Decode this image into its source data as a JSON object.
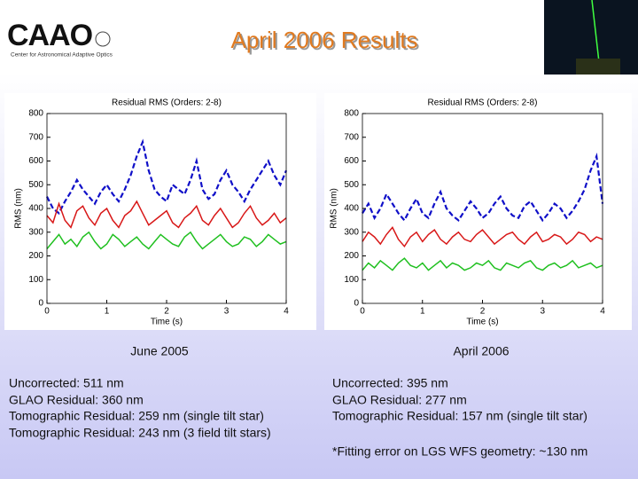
{
  "header": {
    "logo": "CAAO",
    "logo_subtitle": "Center for Astronomical Adaptive Optics",
    "title": "April 2006 Results"
  },
  "chart_data": [
    {
      "type": "line",
      "title": "Residual RMS (Orders: 2-8)",
      "x_label": "Time (s)",
      "y_label": "RMS (nm)",
      "x": [
        0,
        0.1,
        0.2,
        0.3,
        0.4,
        0.5,
        0.6,
        0.7,
        0.8,
        0.9,
        1,
        1.1,
        1.2,
        1.3,
        1.4,
        1.5,
        1.6,
        1.7,
        1.8,
        1.9,
        2,
        2.1,
        2.2,
        2.3,
        2.4,
        2.5,
        2.6,
        2.7,
        2.8,
        2.9,
        3,
        3.1,
        3.2,
        3.3,
        3.4,
        3.5,
        3.6,
        3.7,
        3.8,
        3.9,
        4
      ],
      "xlim": [
        0,
        4
      ],
      "xticks": [
        0,
        1,
        2,
        3,
        4
      ],
      "ylim": [
        0,
        800
      ],
      "yticks": [
        0,
        100,
        200,
        300,
        400,
        500,
        600,
        700,
        800
      ],
      "series": [
        {
          "color": "#1010c8",
          "line_style": "dashed",
          "values": [
            450,
            400,
            380,
            430,
            470,
            520,
            480,
            450,
            420,
            470,
            500,
            460,
            430,
            480,
            540,
            620,
            680,
            560,
            480,
            450,
            430,
            500,
            480,
            460,
            520,
            600,
            480,
            440,
            460,
            520,
            560,
            500,
            470,
            430,
            480,
            520,
            560,
            600,
            540,
            500,
            560
          ]
        },
        {
          "color": "#d81818",
          "line_style": "solid",
          "values": [
            370,
            340,
            420,
            350,
            320,
            390,
            410,
            360,
            330,
            380,
            400,
            350,
            320,
            370,
            390,
            430,
            380,
            330,
            350,
            370,
            390,
            340,
            320,
            360,
            380,
            410,
            350,
            330,
            370,
            400,
            360,
            320,
            340,
            380,
            410,
            360,
            330,
            350,
            380,
            340,
            360
          ]
        },
        {
          "color": "#20c020",
          "line_style": "solid",
          "values": [
            230,
            260,
            290,
            250,
            270,
            240,
            280,
            300,
            260,
            230,
            250,
            290,
            270,
            240,
            260,
            280,
            250,
            230,
            260,
            290,
            270,
            250,
            240,
            280,
            300,
            260,
            230,
            250,
            270,
            290,
            260,
            240,
            250,
            280,
            270,
            240,
            260,
            290,
            270,
            250,
            260
          ]
        }
      ]
    },
    {
      "type": "line",
      "title": "Residual RMS (Orders: 2-8)",
      "x_label": "Time (s)",
      "y_label": "RMS (nm)",
      "x": [
        0,
        0.1,
        0.2,
        0.3,
        0.4,
        0.5,
        0.6,
        0.7,
        0.8,
        0.9,
        1,
        1.1,
        1.2,
        1.3,
        1.4,
        1.5,
        1.6,
        1.7,
        1.8,
        1.9,
        2,
        2.1,
        2.2,
        2.3,
        2.4,
        2.5,
        2.6,
        2.7,
        2.8,
        2.9,
        3,
        3.1,
        3.2,
        3.3,
        3.4,
        3.5,
        3.6,
        3.7,
        3.8,
        3.9,
        4
      ],
      "xlim": [
        0,
        4
      ],
      "xticks": [
        0,
        1,
        2,
        3,
        4
      ],
      "ylim": [
        0,
        800
      ],
      "yticks": [
        0,
        100,
        200,
        300,
        400,
        500,
        600,
        700,
        800
      ],
      "series": [
        {
          "color": "#1010c8",
          "line_style": "dashed",
          "values": [
            380,
            420,
            360,
            400,
            460,
            420,
            380,
            350,
            400,
            440,
            380,
            360,
            420,
            470,
            400,
            370,
            350,
            390,
            430,
            400,
            360,
            380,
            420,
            450,
            400,
            370,
            360,
            410,
            430,
            390,
            350,
            380,
            420,
            400,
            360,
            390,
            430,
            480,
            560,
            620,
            420
          ]
        },
        {
          "color": "#d81818",
          "line_style": "solid",
          "values": [
            260,
            300,
            280,
            250,
            290,
            320,
            270,
            240,
            280,
            300,
            260,
            290,
            310,
            270,
            250,
            280,
            300,
            270,
            260,
            290,
            310,
            280,
            250,
            270,
            290,
            300,
            270,
            250,
            280,
            300,
            260,
            270,
            290,
            280,
            250,
            270,
            300,
            290,
            260,
            280,
            270
          ]
        },
        {
          "color": "#20c020",
          "line_style": "solid",
          "values": [
            140,
            170,
            150,
            180,
            160,
            140,
            170,
            190,
            160,
            150,
            170,
            140,
            160,
            180,
            150,
            170,
            160,
            140,
            150,
            170,
            160,
            180,
            150,
            140,
            170,
            160,
            150,
            170,
            180,
            150,
            140,
            160,
            170,
            150,
            160,
            180,
            150,
            160,
            170,
            150,
            160
          ]
        }
      ]
    }
  ],
  "captions": [
    "June 2005",
    "April 2006"
  ],
  "results": [
    [
      "Uncorrected: 511 nm",
      "GLAO Residual: 360 nm",
      "Tomographic Residual: 259 nm (single tilt star)",
      "Tomographic Residual: 243 nm (3 field tilt stars)"
    ],
    [
      "Uncorrected: 395 nm",
      "GLAO Residual: 277 nm",
      "Tomographic Residual: 157 nm (single tilt star)"
    ]
  ],
  "footnote": "*Fitting error on LGS WFS geometry: ~130 nm"
}
